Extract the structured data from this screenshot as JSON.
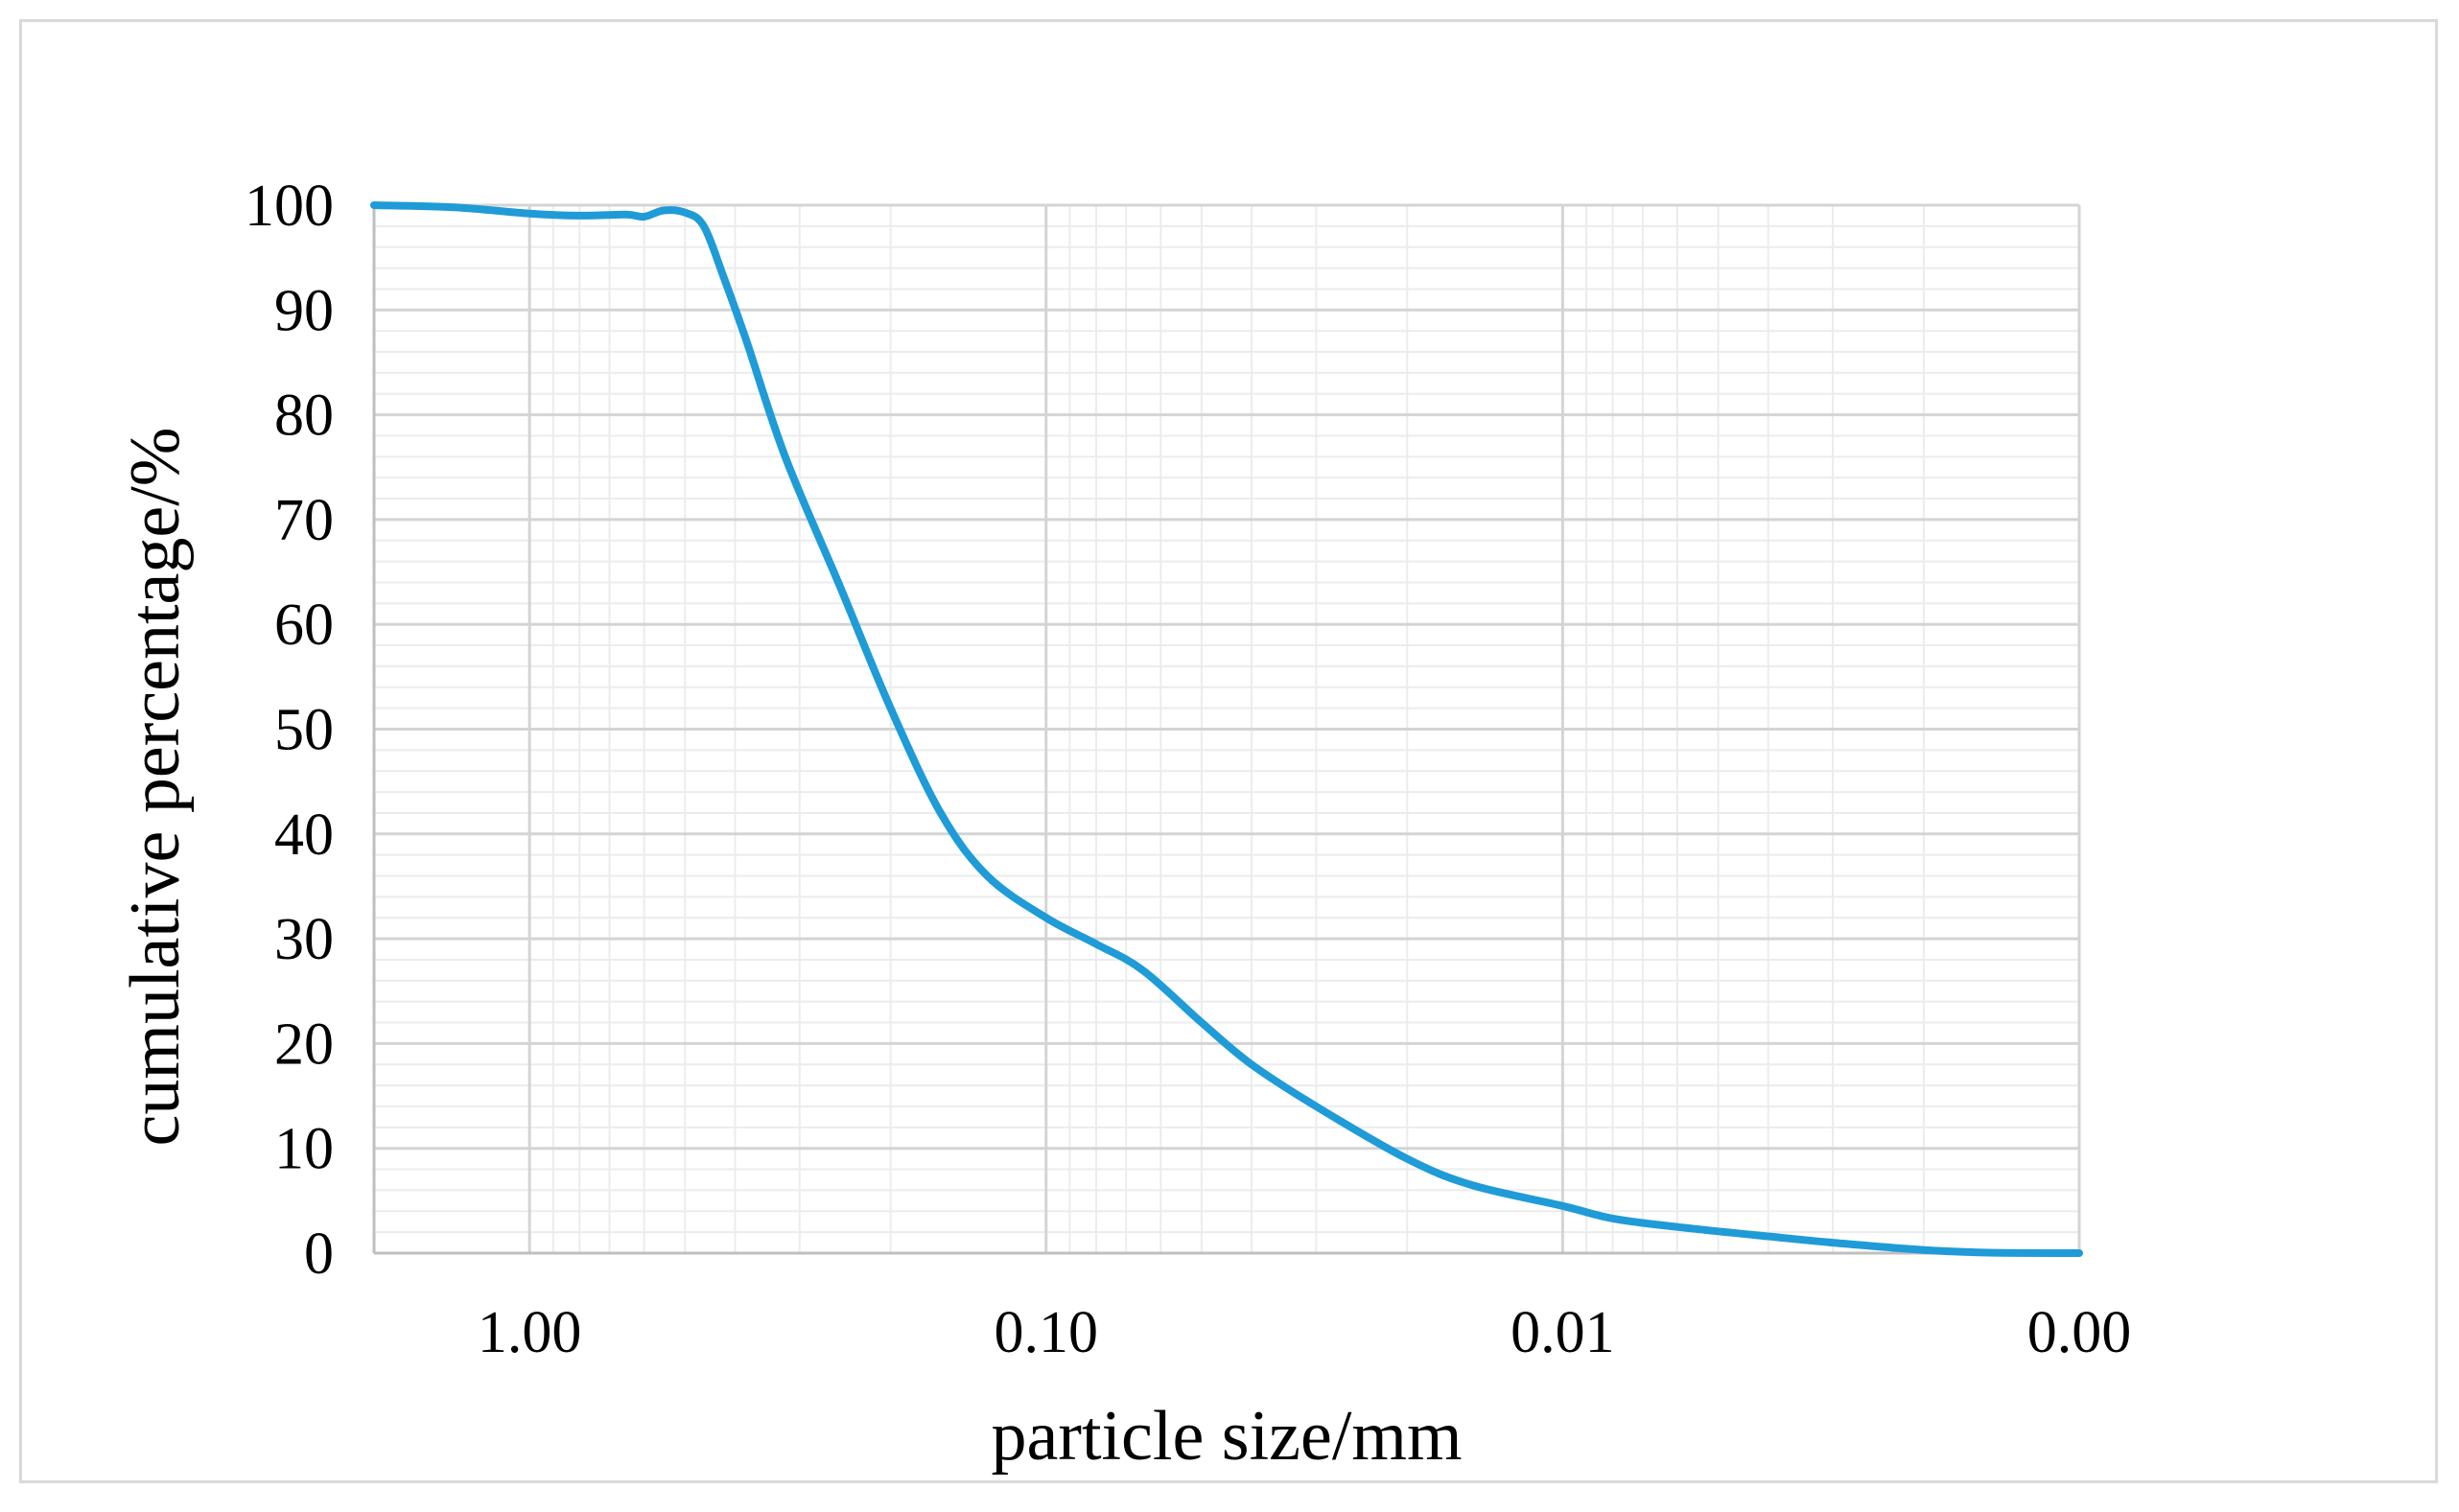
{
  "chart_data": {
    "type": "line",
    "title": "",
    "xlabel": "particle size/mm",
    "ylabel": "cumulative percentage/%",
    "x_scale": "log",
    "x_reversed": true,
    "xlim": [
      2.0,
      0.001
    ],
    "ylim": [
      0,
      100
    ],
    "x_ticks": [
      1,
      0.1,
      0.01,
      0.001
    ],
    "x_tick_labels": [
      "1.00",
      "0.10",
      "0.01",
      "0.00"
    ],
    "y_ticks": [
      0,
      10,
      20,
      30,
      40,
      50,
      60,
      70,
      80,
      90,
      100
    ],
    "y_tick_labels": [
      "0",
      "10",
      "20",
      "30",
      "40",
      "50",
      "60",
      "70",
      "80",
      "90",
      "100"
    ],
    "grid": true,
    "legend": "none",
    "colors": {
      "series": "#1f9bd7",
      "major_grid": "#d4d4d4",
      "minor_grid": "#ececec",
      "axis": "#bfbfbf",
      "frame": "#d9d9d9"
    },
    "series": [
      {
        "x": [
          2.0,
          1.4,
          1.0,
          0.8,
          0.65,
          0.6,
          0.55,
          0.5,
          0.46,
          0.42,
          0.38,
          0.32,
          0.25,
          0.2,
          0.16,
          0.13,
          0.1,
          0.08,
          0.065,
          0.05,
          0.04,
          0.03,
          0.02,
          0.015,
          0.01,
          0.008,
          0.006,
          0.004,
          0.003,
          0.002,
          0.0015,
          0.001
        ],
        "y": [
          100,
          99.8,
          99.2,
          99.0,
          99.1,
          98.9,
          99.5,
          99.3,
          98.0,
          93.0,
          87.0,
          76.0,
          63.5,
          52.0,
          42.0,
          36.0,
          32.0,
          29.5,
          27.0,
          22.0,
          18.0,
          14.0,
          9.0,
          6.5,
          4.5,
          3.3,
          2.5,
          1.6,
          1.0,
          0.3,
          0.05,
          0.0
        ]
      }
    ]
  }
}
